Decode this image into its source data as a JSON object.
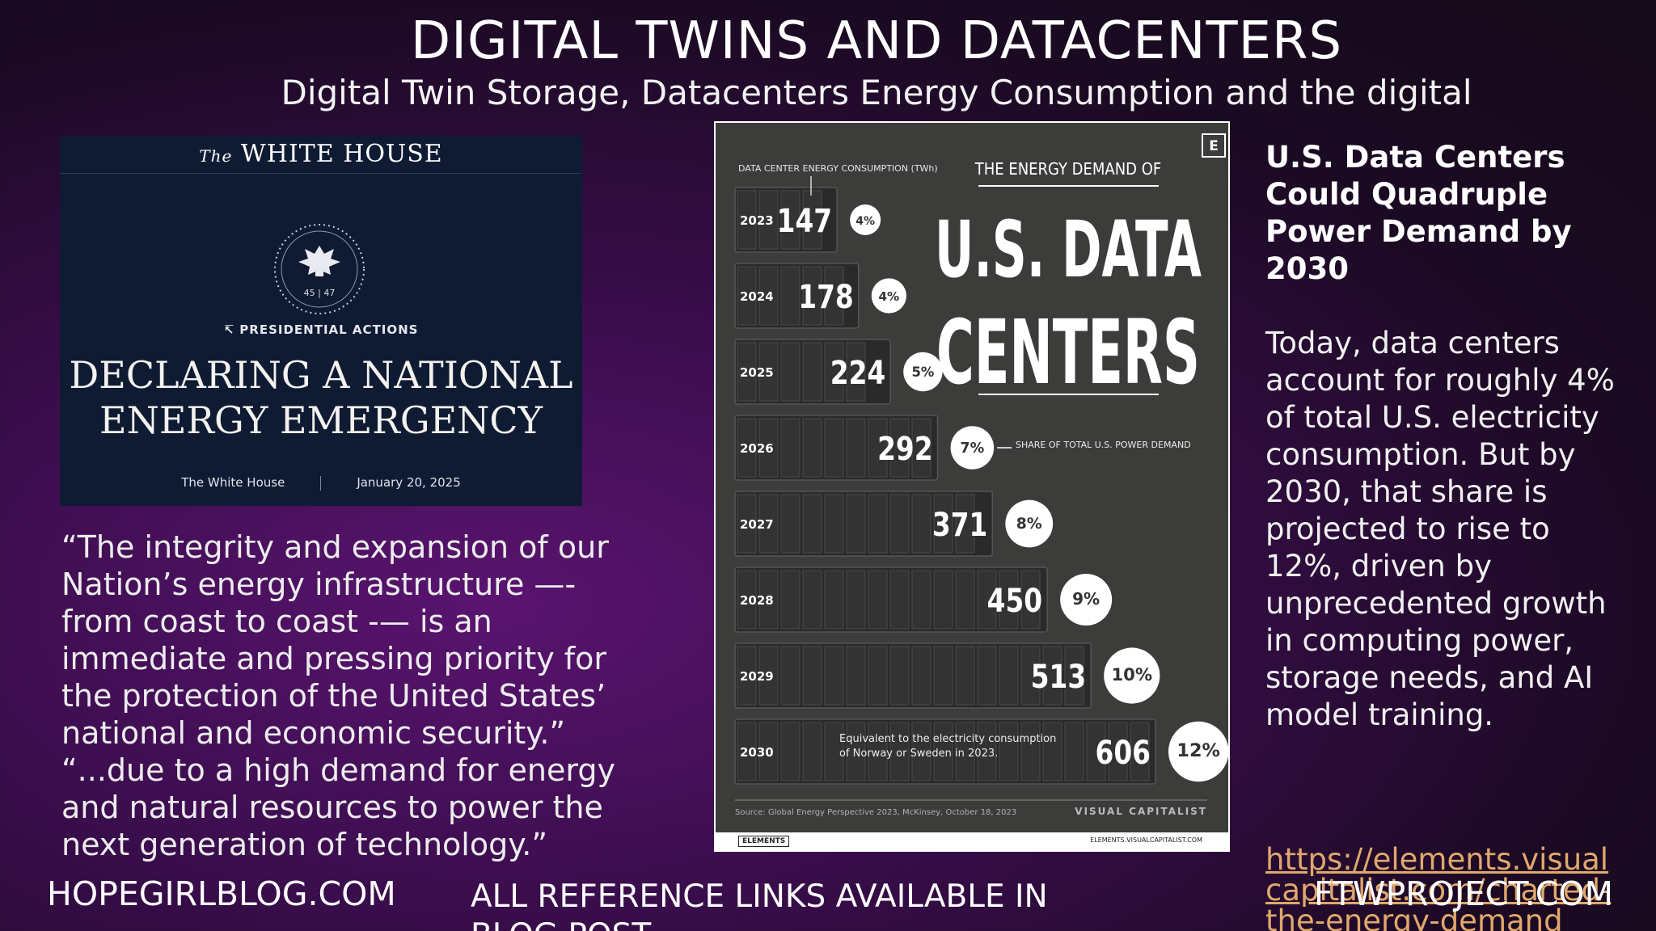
{
  "slide": {
    "title": "DIGITAL TWINS AND DATACENTERS",
    "subtitle": "Digital Twin Storage, Datacenters Energy Consumption and the digital"
  },
  "white_house": {
    "the": "The",
    "name": "WHITE HOUSE",
    "seal_numbers": "45 | 47",
    "section": "↸ PRESIDENTIAL ACTIONS",
    "headline_1": "DECLARING A NATIONAL",
    "headline_2": "ENERGY EMERGENCY",
    "author": "The White House",
    "date": "January 20, 2025"
  },
  "quote": {
    "text": "“The integrity and expansion of our Nation’s energy infrastructure —- from coast to coast -— is an immediate and pressing priority for the protection of the United States’ national and economic security.” “...due to a high demand for energy and natural resources to power the next generation of technology.”"
  },
  "infographic": {
    "badge": "E",
    "axis_label": "DATA CENTER ENERGY CONSUMPTION (TWh)",
    "title_small": "THE ENERGY DEMAND OF",
    "title_big_1": "U.S. DATA",
    "title_big_2": "CENTERS",
    "share_label": "SHARE OF TOTAL U.S. POWER DEMAND",
    "note_1": "Equivalent to the electricity consumption",
    "note_2": "of Norway or Sweden in 2023.",
    "source": "Source: Global Energy Perspective 2023, McKinsey, October 18, 2023",
    "brand": "VISUAL CAPITALIST",
    "footer_left": "ELEMENTS",
    "footer_right": "ELEMENTS.VISUALCAPITALIST.COM"
  },
  "chart_data": {
    "type": "bar",
    "title": "THE ENERGY DEMAND OF U.S. DATA CENTERS",
    "ylabel": "DATA CENTER ENERGY CONSUMPTION (TWh)",
    "categories": [
      "2023",
      "2024",
      "2025",
      "2026",
      "2027",
      "2028",
      "2029",
      "2030"
    ],
    "series": [
      {
        "name": "DATA CENTER ENERGY CONSUMPTION (TWh)",
        "values": [
          147,
          178,
          224,
          292,
          371,
          450,
          513,
          606
        ]
      },
      {
        "name": "SHARE OF TOTAL U.S. POWER DEMAND",
        "values": [
          "4%",
          "4%",
          "5%",
          "7%",
          "8%",
          "9%",
          "10%",
          "12%"
        ]
      }
    ]
  },
  "right_column": {
    "heading": "U.S. Data Centers Could Quadruple Power Demand by 2030",
    "body": "Today, data centers account for roughly 4% of total U.S. electricity consumption. But by 2030, that share is projected to rise to 12%, driven by unprecedented growth in computing power, storage needs, and AI model training.",
    "link": "https://elements.visualcapitalist.com/charted-the-energy-demand"
  },
  "footer": {
    "left": "HOPEGIRLBLOG.COM",
    "middle": "ALL REFERENCE LINKS AVAILABLE IN BLOG POST",
    "right": "FTWPROJECT.COM"
  },
  "colors": {
    "background": "#3a0d4c",
    "infographic_bg": "#3c3c3b",
    "link": "#e0a86c"
  }
}
